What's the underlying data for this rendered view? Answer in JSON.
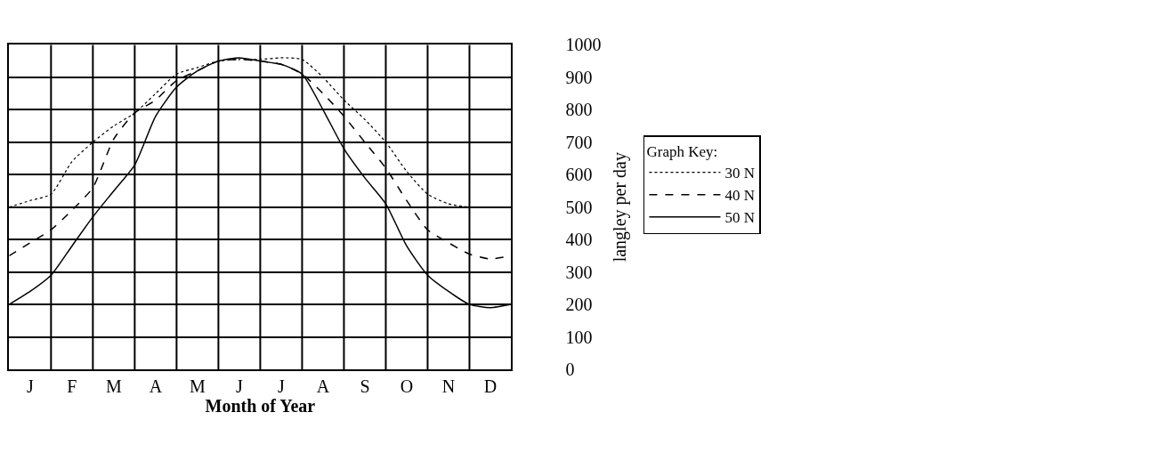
{
  "chart_data": {
    "type": "line",
    "xlabel": "Month of Year",
    "ylabel": "langley per day",
    "legend_title": "Graph Key:",
    "categories": [
      null,
      "J",
      null,
      "F",
      null,
      "M",
      null,
      "A",
      null,
      "M",
      null,
      "J",
      null,
      "J",
      null,
      "A",
      null,
      "S",
      null,
      "O",
      null,
      "N",
      null,
      "D",
      null
    ],
    "series": [
      {
        "name": "30 N",
        "color": "#000000",
        "line_style": "dotted",
        "values": [
          500,
          520,
          540,
          640,
          700,
          750,
          790,
          850,
          910,
          930,
          950,
          955,
          955,
          960,
          955,
          900,
          830,
          770,
          700,
          610,
          540,
          510,
          500,
          500,
          500
        ]
      },
      {
        "name": "40 N",
        "color": "#000000",
        "line_style": "dashed",
        "values": [
          350,
          390,
          430,
          490,
          560,
          710,
          790,
          830,
          890,
          920,
          950,
          955,
          950,
          940,
          910,
          850,
          780,
          700,
          620,
          520,
          430,
          390,
          355,
          340,
          350
        ]
      },
      {
        "name": "50 N",
        "color": "#000000",
        "line_style": "solid",
        "values": [
          200,
          240,
          290,
          380,
          470,
          550,
          630,
          780,
          870,
          920,
          950,
          960,
          950,
          940,
          910,
          800,
          680,
          590,
          510,
          380,
          290,
          240,
          200,
          190,
          200
        ]
      }
    ],
    "ylim": [
      0,
      1000
    ],
    "yticks": [
      0,
      100,
      200,
      300,
      400,
      500,
      600,
      700,
      800,
      900,
      1000
    ],
    "grid": true,
    "legend": "right",
    "marker": "none"
  }
}
